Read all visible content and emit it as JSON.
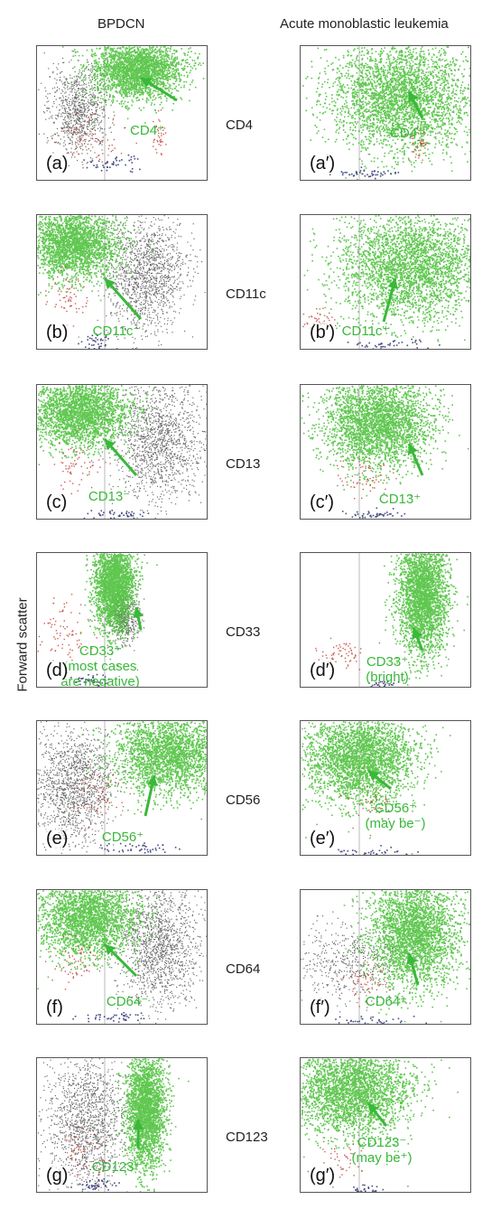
{
  "column_titles": {
    "left": "BPDCN",
    "right": "Acute monoblastic leukemia"
  },
  "y_axis_label": "Forward scatter",
  "colors": {
    "blast": "#4fc23e",
    "gray": "#555555",
    "red": "#c0392b",
    "navy": "#2a2f6e",
    "annotation": "#3ab83a"
  },
  "rows": [
    {
      "marker": "CD4",
      "left": {
        "label": "(a)",
        "annotation": [
          "CD4⁺"
        ]
      },
      "right": {
        "label": "(a′)",
        "annotation": [
          "CD4⁺"
        ]
      }
    },
    {
      "marker": "CD11c",
      "left": {
        "label": "(b)",
        "annotation": [
          "CD11c⁻"
        ]
      },
      "right": {
        "label": "(b′)",
        "annotation": [
          "CD11c⁺"
        ]
      }
    },
    {
      "marker": "CD13",
      "left": {
        "label": "(c)",
        "annotation": [
          "CD13⁻"
        ]
      },
      "right": {
        "label": "(c′)",
        "annotation": [
          "CD13⁺"
        ]
      }
    },
    {
      "marker": "CD33",
      "left": {
        "label": "(d)",
        "annotation": [
          "CD33⁺",
          "(most cases",
          "are negative)"
        ]
      },
      "right": {
        "label": "(d′)",
        "annotation": [
          "CD33⁺",
          "(bright)"
        ]
      }
    },
    {
      "marker": "CD56",
      "left": {
        "label": "(e)",
        "annotation": [
          "CD56⁺"
        ]
      },
      "right": {
        "label": "(e′)",
        "annotation": [
          "CD56⁺",
          "(may be⁻)"
        ]
      }
    },
    {
      "marker": "CD64",
      "left": {
        "label": "(f)",
        "annotation": [
          "CD64⁻"
        ]
      },
      "right": {
        "label": "(f′)",
        "annotation": [
          "CD64⁺"
        ]
      }
    },
    {
      "marker": "CD123",
      "left": {
        "label": "(g)",
        "annotation": [
          "CD123⁺"
        ]
      },
      "right": {
        "label": "(g′)",
        "annotation": [
          "CD123⁻",
          "(may be⁺)"
        ]
      }
    }
  ]
}
